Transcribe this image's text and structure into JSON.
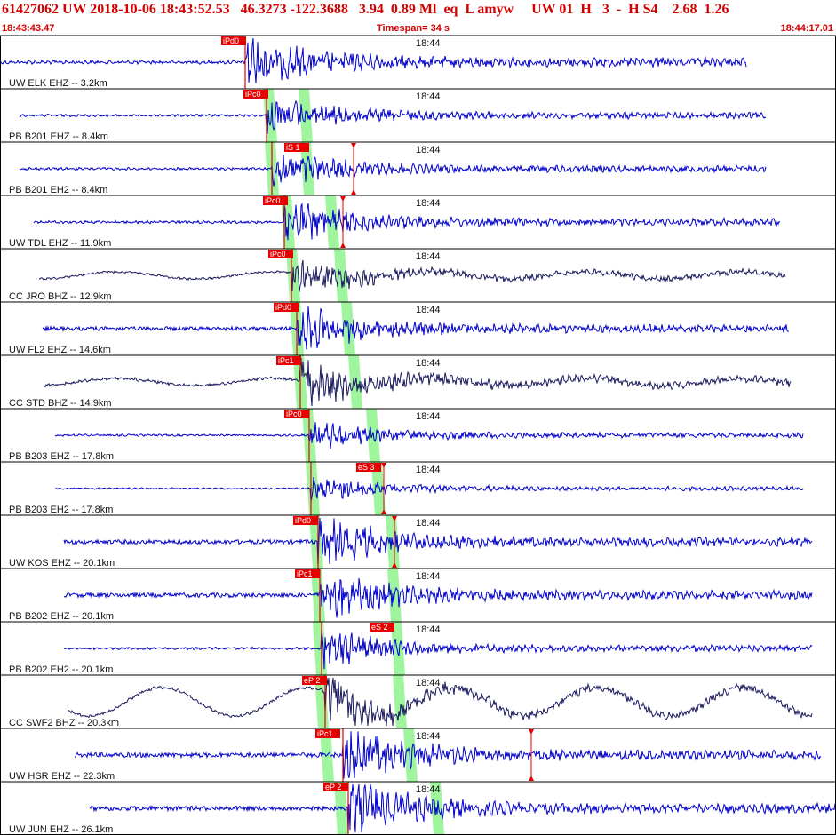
{
  "header": {
    "line1": "61427062 UW 2018-10-06 18:43:52.53   46.3273 -122.3688   3.94  0.89 Ml  eq  L amyw     UW 01  H   3  -  H S4    2.68  1.26",
    "start_time": "18:43:43.47",
    "timespan": "Timespan=  34 s",
    "end_time": "18:44:17.01"
  },
  "colors": {
    "trace_blue": "#0000cc",
    "trace_dark": "#1a1a5e",
    "pick_red": "#e60000",
    "window_green": "#9ef59e",
    "grid": "#000000"
  },
  "chart_data": {
    "type": "line",
    "x_range": [
      "18:43:43.47",
      "18:44:17.01"
    ],
    "time_tick_label": "18:44",
    "series": [
      {
        "name": "UW ELK EHZ -- 3.2km",
        "picks": [
          "iPd0"
        ],
        "color": "blue"
      },
      {
        "name": "PB B201 EHZ -- 8.4km",
        "picks": [
          "iPc0"
        ],
        "color": "blue"
      },
      {
        "name": "PB B201 EH2 -- 8.4km",
        "picks": [
          "iS 1"
        ],
        "color": "blue"
      },
      {
        "name": "UW TDL EHZ -- 11.9km",
        "picks": [
          "iPc0"
        ],
        "color": "blue"
      },
      {
        "name": "CC JRO BHZ -- 12.9km",
        "picks": [
          "iPc0"
        ],
        "color": "dark"
      },
      {
        "name": "UW FL2 EHZ -- 14.6km",
        "picks": [
          "iPd0"
        ],
        "color": "blue"
      },
      {
        "name": "CC STD BHZ -- 14.9km",
        "picks": [
          "iPc1"
        ],
        "color": "dark"
      },
      {
        "name": "PB B203 EHZ -- 17.8km",
        "picks": [
          "iPc0"
        ],
        "color": "blue"
      },
      {
        "name": "PB B203 EH2 -- 17.8km",
        "picks": [
          "eS 3"
        ],
        "color": "blue"
      },
      {
        "name": "UW KOS EHZ -- 20.1km",
        "picks": [
          "iPd0"
        ],
        "color": "blue"
      },
      {
        "name": "PB B202 EHZ -- 20.1km",
        "picks": [
          "iPc1"
        ],
        "color": "blue"
      },
      {
        "name": "PB B202 EH2 -- 20.1km",
        "picks": [
          "eS 2"
        ],
        "color": "blue"
      },
      {
        "name": "CC SWF2 BHZ -- 20.3km",
        "picks": [
          "eP 2"
        ],
        "color": "dark"
      },
      {
        "name": "UW HSR EHZ -- 22.3km",
        "picks": [
          "iPc1"
        ],
        "color": "blue"
      },
      {
        "name": "UW JUN EHZ -- 26.1km",
        "picks": [
          "eP 2"
        ],
        "color": "blue"
      }
    ]
  }
}
